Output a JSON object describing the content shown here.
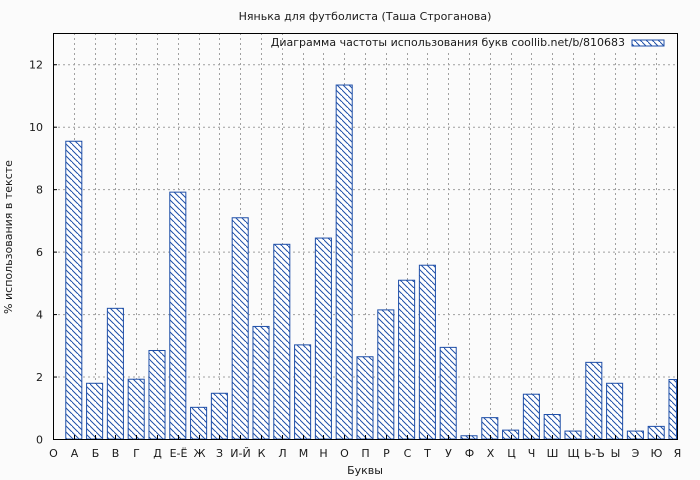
{
  "chart_data": {
    "type": "bar",
    "title": "Нянька для футболиста (Таша Строганова)",
    "xlabel": "Буквы",
    "ylabel": "% использования в тексте",
    "ylim": [
      0,
      13
    ],
    "yticks": [
      0,
      2,
      4,
      6,
      8,
      10,
      12
    ],
    "grid": true,
    "legend_position": "top-right",
    "categories": [
      "О",
      "А",
      "Б",
      "В",
      "Г",
      "Д",
      "Е-Ё",
      "Ж",
      "З",
      "И-Й",
      "К",
      "Л",
      "М",
      "Н",
      "О",
      "П",
      "Р",
      "С",
      "Т",
      "У",
      "Ф",
      "Х",
      "Ц",
      "Ч",
      "Ш",
      "Щ",
      "Ь-Ъ",
      "Ы",
      "Э",
      "Ю",
      "Я"
    ],
    "series": [
      {
        "name": "Диаграмма частоты использования букв coollib.net/b/810683",
        "values": [
          null,
          9.55,
          1.8,
          4.2,
          1.93,
          2.85,
          7.92,
          1.03,
          1.48,
          7.1,
          3.62,
          6.25,
          3.03,
          6.45,
          11.35,
          2.65,
          4.15,
          5.1,
          5.58,
          2.95,
          0.12,
          0.7,
          0.3,
          1.45,
          0.8,
          0.27,
          2.47,
          1.8,
          0.27,
          0.42,
          1.92
        ]
      }
    ],
    "colors": {
      "bar_stroke": "#1f4fa8",
      "bar_hatch": "#1f4fa8",
      "bar_fill": "#ffffff",
      "grid": "#a0a0a0",
      "axis": "#000000"
    }
  }
}
